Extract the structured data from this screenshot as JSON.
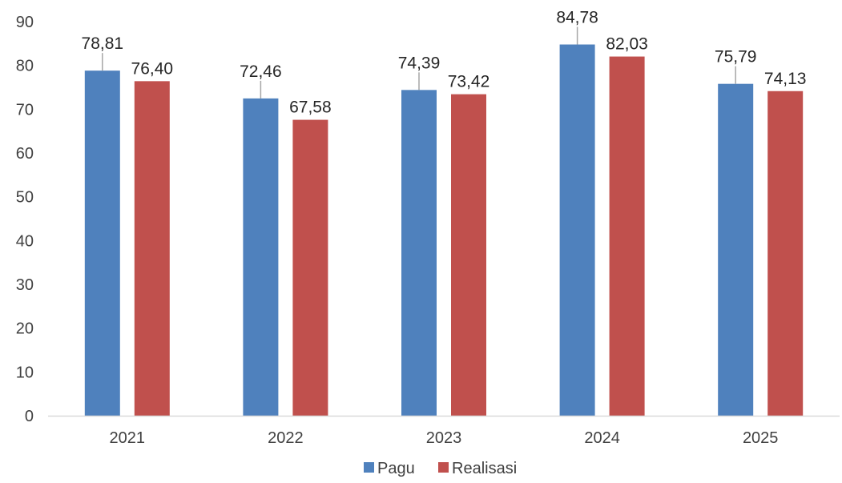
{
  "chart_data": {
    "type": "bar",
    "categories": [
      "2021",
      "2022",
      "2023",
      "2024",
      "2025"
    ],
    "series": [
      {
        "name": "Pagu",
        "color": "#4f81bd",
        "values": [
          78.81,
          72.46,
          74.39,
          84.78,
          75.79
        ],
        "labels": [
          "78,81",
          "72,46",
          "74,39",
          "84,78",
          "75,79"
        ]
      },
      {
        "name": "Realisasi",
        "color": "#c0504d",
        "values": [
          76.4,
          67.58,
          73.42,
          82.03,
          74.13
        ],
        "labels": [
          "76,40",
          "67,58",
          "73,42",
          "82,03",
          "74,13"
        ]
      }
    ],
    "ylim": [
      0,
      90
    ],
    "yticks": [
      "0",
      "10",
      "20",
      "30",
      "40",
      "50",
      "60",
      "70",
      "80",
      "90"
    ],
    "grid": false,
    "legend_position": "bottom",
    "leader_color": "#a6a6a6",
    "axis_color": "#d9d9d9"
  }
}
